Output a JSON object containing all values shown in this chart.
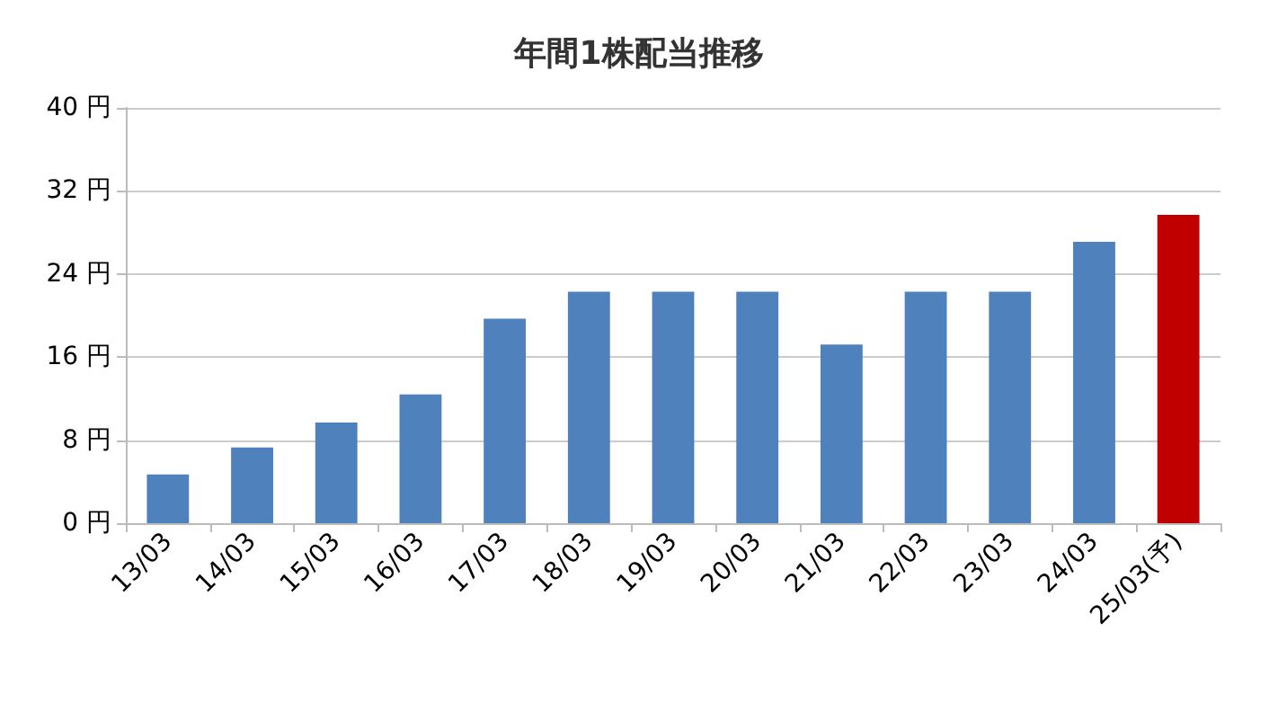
{
  "chart_data": {
    "type": "bar",
    "title": "年間1株配当推移",
    "categories": [
      "13/03",
      "14/03",
      "15/03",
      "16/03",
      "17/03",
      "18/03",
      "19/03",
      "20/03",
      "21/03",
      "22/03",
      "23/03",
      "24/03",
      "25/03(予)"
    ],
    "values": [
      4.7,
      7.3,
      9.7,
      12.4,
      19.7,
      22.3,
      22.3,
      22.3,
      17.2,
      22.3,
      22.3,
      27.1,
      29.7
    ],
    "colors": [
      "#4f81bd",
      "#4f81bd",
      "#4f81bd",
      "#4f81bd",
      "#4f81bd",
      "#4f81bd",
      "#4f81bd",
      "#4f81bd",
      "#4f81bd",
      "#4f81bd",
      "#4f81bd",
      "#4f81bd",
      "#c00000"
    ],
    "ylim": [
      0,
      40
    ],
    "yticks": [
      {
        "value": 0,
        "label": "0 円"
      },
      {
        "value": 8,
        "label": "8 円"
      },
      {
        "value": 16,
        "label": "16 円"
      },
      {
        "value": 24,
        "label": "24 円"
      },
      {
        "value": 32,
        "label": "32 円"
      },
      {
        "value": 40,
        "label": "40 円"
      }
    ],
    "grid": "y"
  }
}
